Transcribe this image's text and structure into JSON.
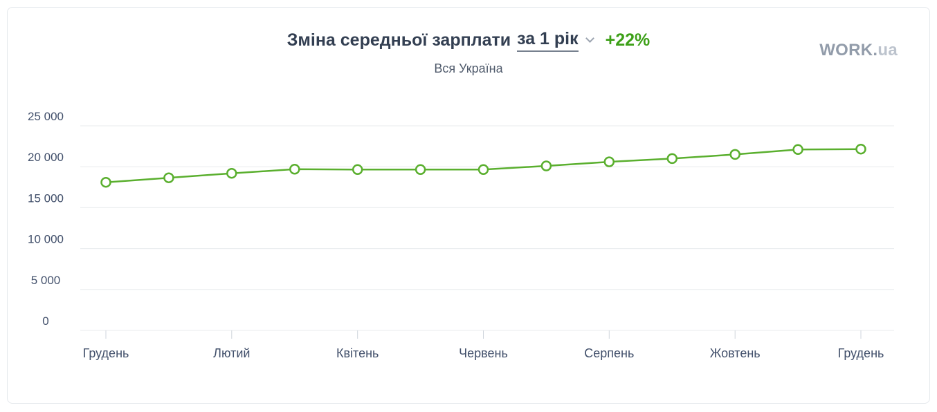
{
  "header": {
    "title": "Зміна середньої зарплати",
    "period_label": "за 1 рік",
    "delta": "+22%",
    "subtitle": "Вся Україна",
    "logo_main": "WORK.",
    "logo_suffix": "ua"
  },
  "colors": {
    "line": "#5aaf2e",
    "marker_fill": "#ffffff",
    "delta_text": "#3da018",
    "grid": "#e8ebee",
    "axis_text": "#42506b",
    "tick": "#cfd5dc",
    "title_text": "#333f52"
  },
  "chart_data": {
    "type": "line",
    "title": "Зміна середньої зарплати за 1 рік",
    "delta_label": "+22%",
    "subtitle": "Вся Україна",
    "n_points": 13,
    "values": [
      18100,
      18650,
      19200,
      19700,
      19650,
      19650,
      19650,
      20100,
      20600,
      21000,
      21500,
      22100,
      22150
    ],
    "y_ticks": [
      {
        "value": 0,
        "label": "0"
      },
      {
        "value": 5000,
        "label": "5 000"
      },
      {
        "value": 10000,
        "label": "10 000"
      },
      {
        "value": 15000,
        "label": "15 000"
      },
      {
        "value": 20000,
        "label": "20 000"
      },
      {
        "value": 25000,
        "label": "25 000"
      }
    ],
    "x_ticks": [
      {
        "index": 0,
        "label": "Грудень"
      },
      {
        "index": 2,
        "label": "Лютий"
      },
      {
        "index": 4,
        "label": "Квітень"
      },
      {
        "index": 6,
        "label": "Червень"
      },
      {
        "index": 8,
        "label": "Серпень"
      },
      {
        "index": 10,
        "label": "Жовтень"
      },
      {
        "index": 12,
        "label": "Грудень"
      }
    ],
    "ylim": [
      0,
      25000
    ],
    "grid": "horizontal",
    "legend": "none"
  }
}
